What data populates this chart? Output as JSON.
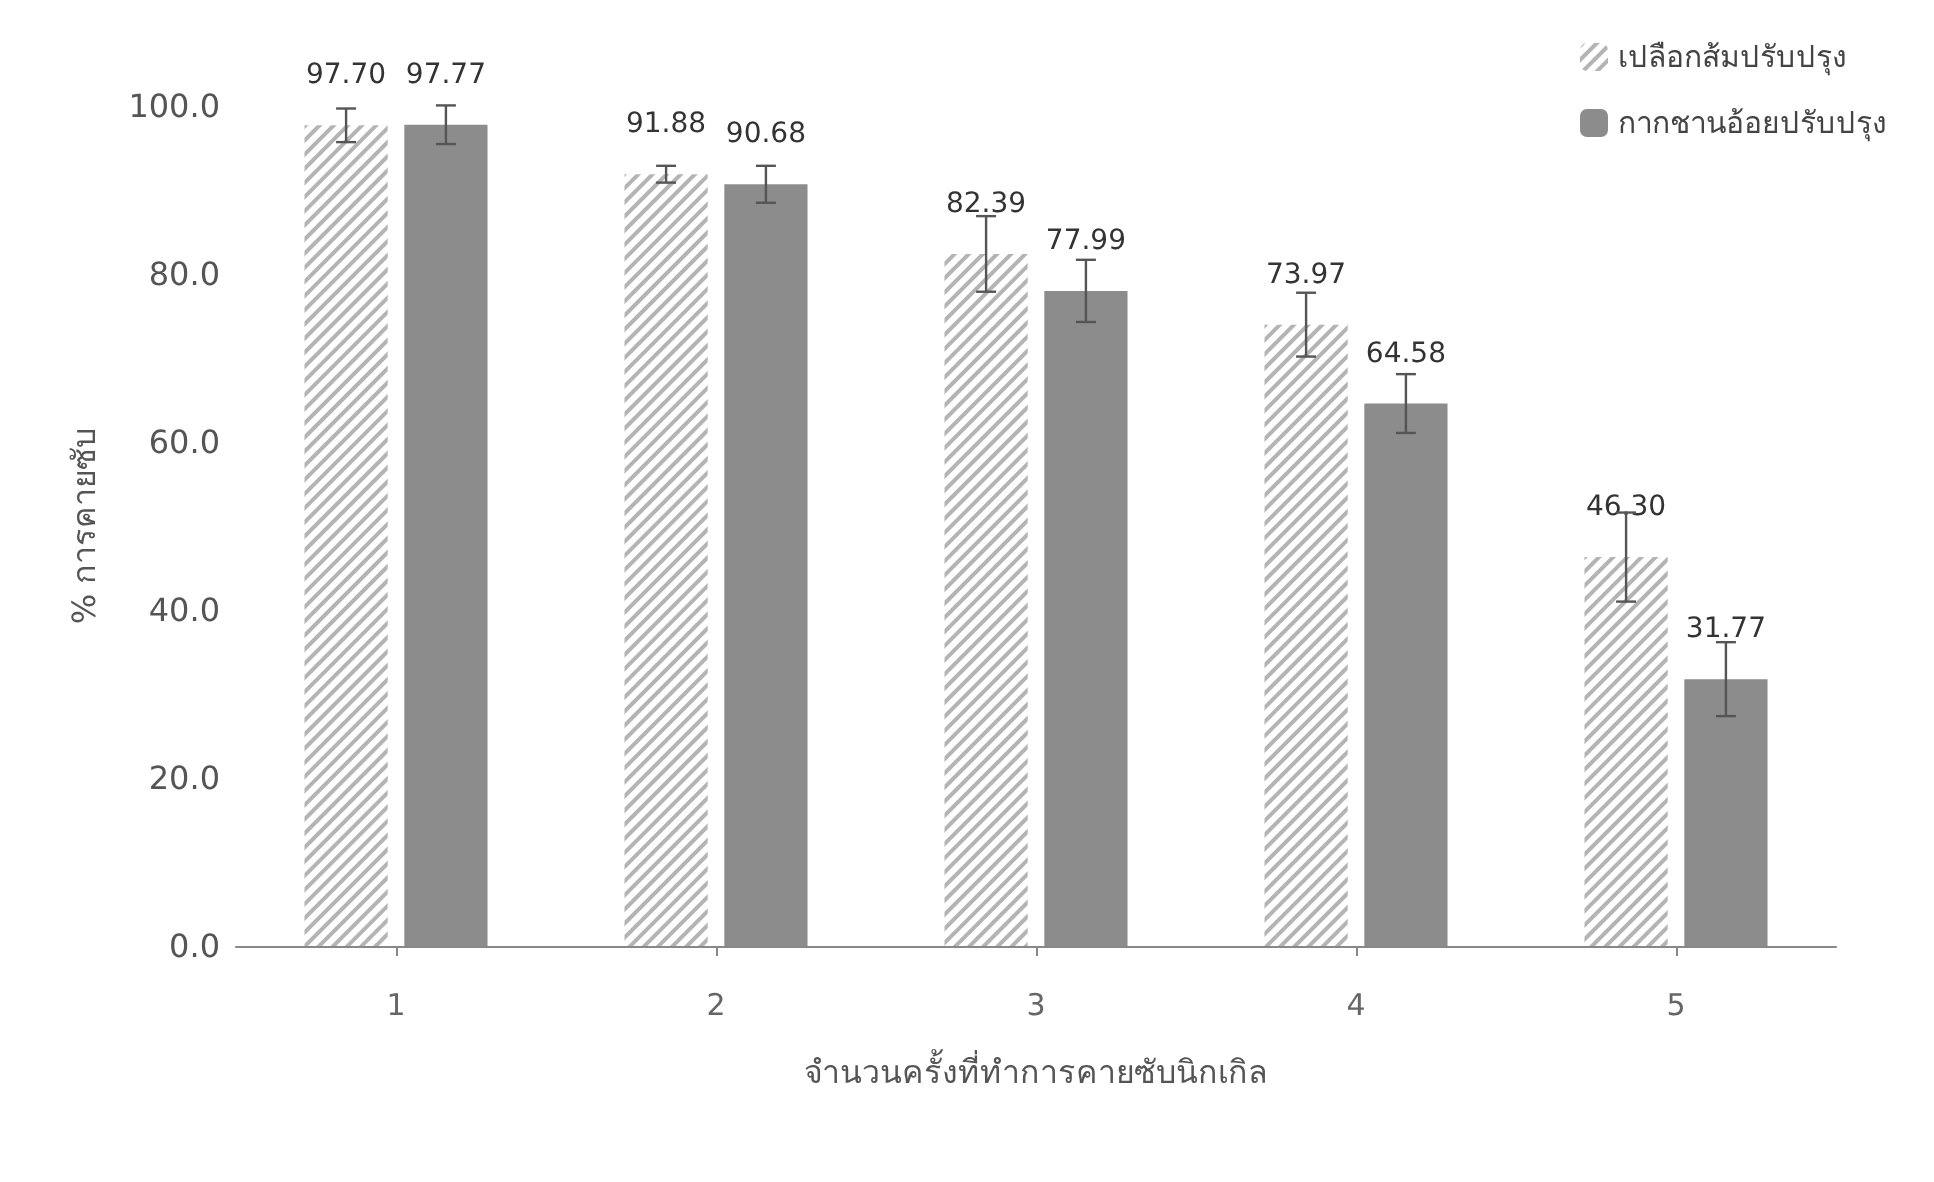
{
  "chart_data": {
    "type": "bar",
    "xlabel": "จำนวนครั้งที่ทำการคายซับนิกเกิล",
    "ylabel": "% การคายซับ",
    "categories": [
      "1",
      "2",
      "3",
      "4",
      "5"
    ],
    "series": [
      {
        "name": "เปลือกส้มปรับปรุง",
        "color": "#b4b4b4",
        "values": [
          97.7,
          91.88,
          82.39,
          73.97,
          46.3
        ],
        "errors": [
          2.0,
          1.0,
          4.5,
          3.8,
          5.3
        ],
        "value_labels": [
          "97.70",
          "91.88",
          "82.39",
          "73.97",
          "46.30"
        ]
      },
      {
        "name": "กากชานอ้อยปรับปรุง",
        "color": "#8c8c8c",
        "values": [
          97.77,
          90.68,
          77.99,
          64.58,
          31.77
        ],
        "errors": [
          2.3,
          2.2,
          3.7,
          3.5,
          4.4
        ],
        "value_labels": [
          "97.77",
          "90.68",
          "77.99",
          "64.58",
          "31.77"
        ]
      }
    ],
    "ylim": [
      0,
      100
    ],
    "yticks": [
      {
        "value": 0,
        "label": "0.0"
      },
      {
        "value": 20,
        "label": "20.0"
      },
      {
        "value": 40,
        "label": "40.0"
      },
      {
        "value": 60,
        "label": "60.0"
      },
      {
        "value": 80,
        "label": "80.0"
      },
      {
        "value": 100,
        "label": "100.0"
      }
    ],
    "legend": "top right",
    "grid": false
  }
}
